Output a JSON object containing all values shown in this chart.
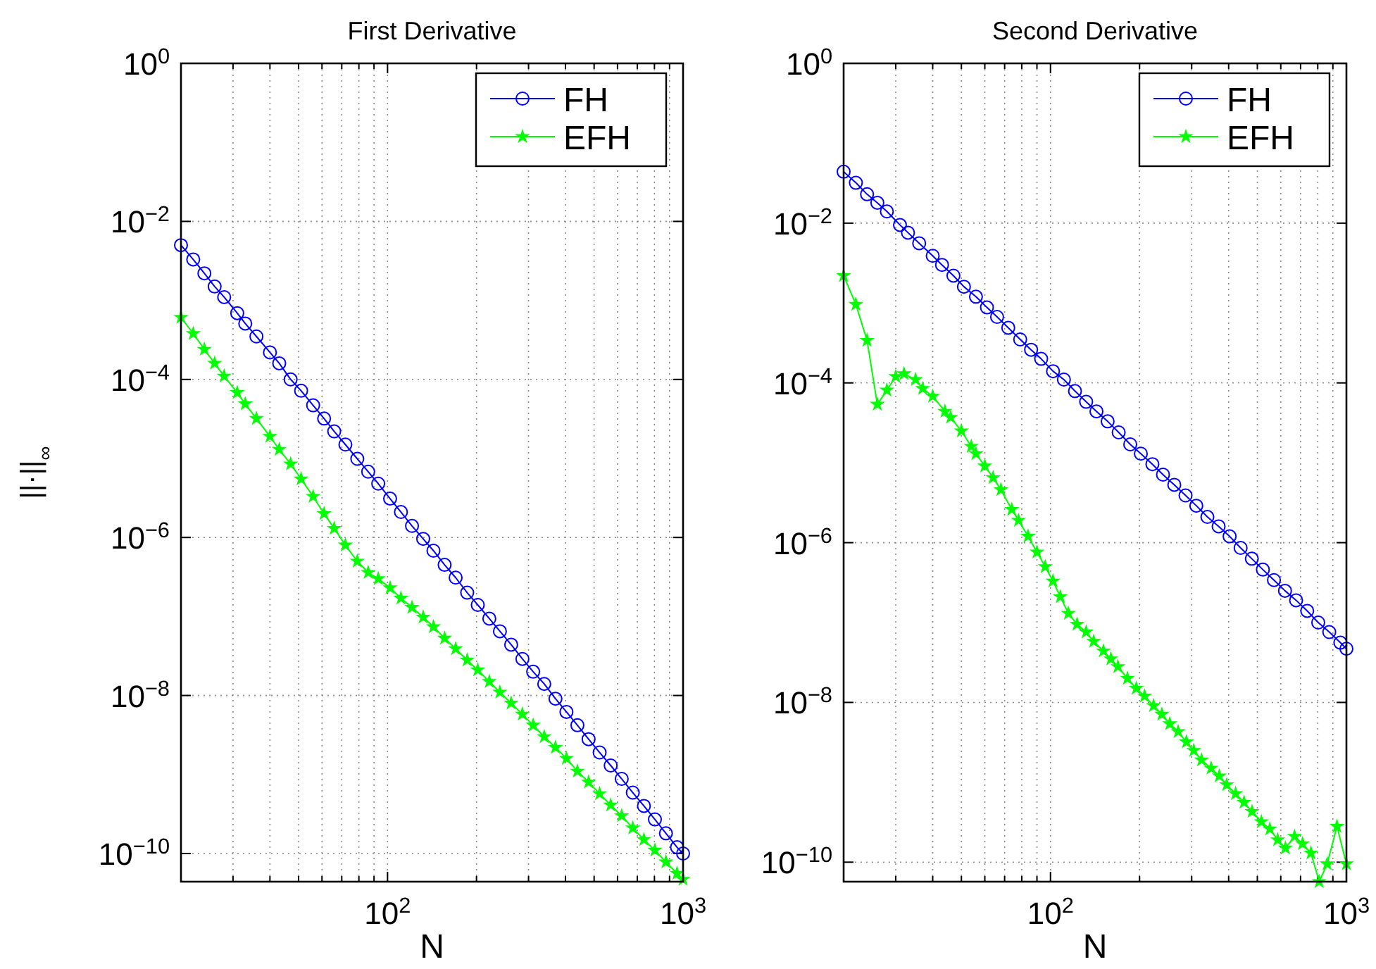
{
  "chart_data": [
    {
      "type": "line",
      "title": "First Derivative",
      "xlabel": "N",
      "ylabel": "||·||$_{∞}$",
      "log": "xy",
      "grid": true,
      "legend": "top right",
      "x": [
        20,
        22,
        24,
        26,
        28,
        31,
        33,
        36,
        40,
        43,
        47,
        51,
        56,
        61,
        66,
        72,
        79,
        86,
        93,
        102,
        111,
        121,
        132,
        143,
        156,
        170,
        186,
        202,
        221,
        240,
        262,
        286,
        311,
        339,
        370,
        403,
        439,
        479,
        522,
        569,
        620,
        676,
        737,
        803,
        875,
        954,
        1000
      ],
      "xlim": [
        20,
        1000
      ],
      "ylim": [
        4.4e-11,
        1
      ],
      "xticks": [
        {
          "value": 30,
          "label": null
        },
        {
          "value": 40,
          "label": null
        },
        {
          "value": 50,
          "label": null
        },
        {
          "value": 60,
          "label": null
        },
        {
          "value": 70,
          "label": null
        },
        {
          "value": 80,
          "label": null
        },
        {
          "value": 90,
          "label": null
        },
        {
          "value": 100,
          "label": "10$^{2}$"
        },
        {
          "value": 200,
          "label": null
        },
        {
          "value": 300,
          "label": null
        },
        {
          "value": 400,
          "label": null
        },
        {
          "value": 500,
          "label": null
        },
        {
          "value": 600,
          "label": null
        },
        {
          "value": 700,
          "label": null
        },
        {
          "value": 800,
          "label": null
        },
        {
          "value": 900,
          "label": null
        },
        {
          "value": 1000,
          "label": "10$^{3}$"
        }
      ],
      "yticks": [
        {
          "value": 1e-10,
          "label": "10$^{−10}$"
        },
        {
          "value": 1e-08,
          "label": "10$^{−8}$"
        },
        {
          "value": 1e-06,
          "label": "10$^{−6}$"
        },
        {
          "value": 0.0001,
          "label": "10$^{−4}$"
        },
        {
          "value": 0.01,
          "label": "10$^{−2}$"
        },
        {
          "value": 1,
          "label": "10$^{0}$"
        }
      ],
      "series": [
        {
          "name": "FH",
          "color": "#0000ff",
          "marker": "circle",
          "values": [
            0.005,
            0.0033,
            0.0022,
            0.0015,
            0.0011,
            0.00069,
            0.00051,
            0.00035,
            0.00022,
            0.00016,
            0.0001,
            7.2e-05,
            4.7e-05,
            3.2e-05,
            2.2e-05,
            1.5e-05,
            9.9e-06,
            6.8e-06,
            4.8e-06,
            3.1e-06,
            2.1e-06,
            1.4e-06,
            9.6e-07,
            6.8e-07,
            4.5e-07,
            3.1e-07,
            2e-07,
            1.4e-07,
            9.4e-08,
            6.5e-08,
            4.4e-08,
            2.9e-08,
            2e-08,
            1.4e-08,
            9.1e-09,
            6.2e-09,
            4.2e-09,
            2.8e-09,
            1.9e-09,
            1.3e-09,
            8.8e-10,
            5.9e-10,
            4e-10,
            2.7e-10,
            1.8e-10,
            1.2e-10,
            1e-10
          ]
        },
        {
          "name": "EFH",
          "color": "#00ff00",
          "marker": "star",
          "values": [
            0.00061,
            0.00038,
            0.00024,
            0.00016,
            0.00011,
            6.8e-05,
            4.9e-05,
            3.2e-05,
            1.9e-05,
            1.3e-05,
            8.5e-06,
            5.5e-06,
            3.3e-06,
            2e-06,
            1.3e-06,
            8e-07,
            5e-07,
            3.6e-07,
            3e-07,
            2.3e-07,
            1.7e-07,
            1.3e-07,
            9.8e-08,
            7.4e-08,
            5.3e-08,
            3.9e-08,
            2.8e-08,
            2.1e-08,
            1.5e-08,
            1.1e-08,
            8e-09,
            5.8e-09,
            4.2e-09,
            3e-09,
            2.2e-09,
            1.6e-09,
            1.1e-09,
            8e-10,
            5.7e-10,
            4.1e-10,
            3e-10,
            2.1e-10,
            1.5e-10,
            1.1e-10,
            7.8e-11,
            5.6e-11,
            4.7e-11
          ]
        }
      ]
    },
    {
      "type": "line",
      "title": "Second Derivative",
      "xlabel": "N",
      "log": "xy",
      "grid": true,
      "legend": "top right",
      "x": [
        20,
        22,
        24,
        26,
        28,
        31,
        33,
        36,
        40,
        43,
        47,
        51,
        56,
        61,
        66,
        72,
        79,
        86,
        93,
        102,
        111,
        121,
        132,
        143,
        156,
        170,
        186,
        202,
        221,
        240,
        262,
        286,
        311,
        339,
        370,
        403,
        439,
        479,
        522,
        569,
        620,
        676,
        737,
        803,
        875,
        954,
        1000
      ],
      "xlim": [
        20,
        1000
      ],
      "ylim": [
        5.7e-11,
        1
      ],
      "xticks": [
        {
          "value": 30,
          "label": null
        },
        {
          "value": 40,
          "label": null
        },
        {
          "value": 50,
          "label": null
        },
        {
          "value": 60,
          "label": null
        },
        {
          "value": 70,
          "label": null
        },
        {
          "value": 80,
          "label": null
        },
        {
          "value": 90,
          "label": null
        },
        {
          "value": 100,
          "label": "10$^{2}$"
        },
        {
          "value": 200,
          "label": null
        },
        {
          "value": 300,
          "label": null
        },
        {
          "value": 400,
          "label": null
        },
        {
          "value": 500,
          "label": null
        },
        {
          "value": 600,
          "label": null
        },
        {
          "value": 700,
          "label": null
        },
        {
          "value": 800,
          "label": null
        },
        {
          "value": 900,
          "label": null
        },
        {
          "value": 1000,
          "label": "10$^{3}$"
        }
      ],
      "yticks": [
        {
          "value": 1e-10,
          "label": "10$^{−10}$"
        },
        {
          "value": 1e-08,
          "label": "10$^{−8}$"
        },
        {
          "value": 1e-06,
          "label": "10$^{−6}$"
        },
        {
          "value": 0.0001,
          "label": "10$^{−4}$"
        },
        {
          "value": 0.01,
          "label": "10$^{−2}$"
        },
        {
          "value": 1,
          "label": "10$^{0}$"
        }
      ],
      "series": [
        {
          "name": "FH",
          "color": "#0000ff",
          "marker": "circle",
          "values": [
            0.044,
            0.032,
            0.023,
            0.018,
            0.014,
            0.0095,
            0.0076,
            0.0056,
            0.0039,
            0.003,
            0.0022,
            0.0016,
            0.0012,
            0.00088,
            0.00067,
            0.00049,
            0.00035,
            0.00026,
            0.0002,
            0.00014,
            0.00011,
            7.9e-05,
            5.8e-05,
            4.4e-05,
            3.3e-05,
            2.4e-05,
            1.7e-05,
            1.3e-05,
            9.6e-06,
            7.1e-06,
            5.3e-06,
            3.9e-06,
            2.9e-06,
            2.1e-06,
            1.6e-06,
            1.2e-06,
            8.6e-07,
            6.3e-07,
            4.6e-07,
            3.4e-07,
            2.5e-07,
            1.9e-07,
            1.4e-07,
            1e-07,
            7.6e-08,
            5.6e-08,
            4.7e-08
          ]
        },
        {
          "name": "EFH",
          "color": "#00ff00",
          "marker": "star",
          "x": [
            20,
            22,
            24,
            26,
            28,
            30,
            32,
            35,
            37,
            40,
            44,
            46,
            50,
            54,
            56,
            60,
            64,
            68,
            74,
            78,
            84,
            90,
            96,
            102,
            108,
            115,
            123,
            132,
            140,
            151,
            160,
            169,
            182,
            195,
            208,
            223,
            238,
            253,
            270,
            288,
            305,
            324,
            349,
            372,
            394,
            422,
            451,
            480,
            516,
            551,
            586,
            622,
            668,
            711,
            759,
            809,
            861,
            929,
            1000
          ],
          "values": [
            0.0022,
            0.00096,
            0.00034,
            5.4e-05,
            8.1e-05,
            0.00012,
            0.00013,
            0.00011,
            8.5e-05,
            6.8e-05,
            4.4e-05,
            3.7e-05,
            2.5e-05,
            1.6e-05,
            1.3e-05,
            9.1e-06,
            6.5e-06,
            4.6e-06,
            2.6e-06,
            1.9e-06,
            1.2e-06,
            7.6e-07,
            5e-07,
            3.3e-07,
            2.1e-07,
            1.3e-07,
            9.5e-08,
            7.6e-08,
            5.8e-08,
            4.4e-08,
            3.5e-08,
            2.8e-08,
            2e-08,
            1.5e-08,
            1.2e-08,
            9.1e-09,
            7.1e-09,
            5.4e-09,
            4.3e-09,
            3.2e-09,
            2.5e-09,
            1.9e-09,
            1.5e-09,
            1.2e-09,
            9.3e-10,
            7.2e-10,
            5.6e-10,
            4.3e-10,
            3.2e-10,
            2.6e-10,
            1.9e-10,
            1.5e-10,
            2.1e-10,
            1.7e-10,
            1.3e-10,
            5.7e-11,
            9.5e-11,
            2.8e-10,
            9.5e-11
          ]
        }
      ]
    }
  ]
}
